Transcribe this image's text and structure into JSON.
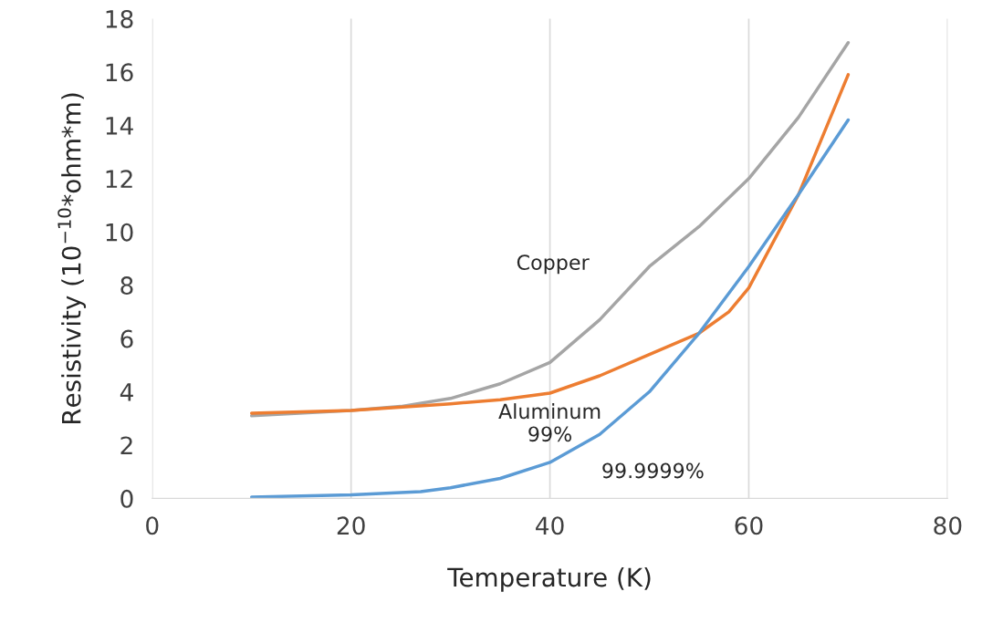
{
  "chart_data": {
    "type": "line",
    "xlabel": "Temperature (K)",
    "ylabel": "Resistivity (10$^{−10}$*ohm*m)",
    "xlim": [
      0,
      80
    ],
    "xticks": [
      0,
      20,
      40,
      60,
      80
    ],
    "ylim": [
      0,
      18
    ],
    "yticks": [
      0,
      2,
      4,
      6,
      8,
      10,
      12,
      14,
      16,
      18
    ],
    "grid": "x",
    "legend": false,
    "series": [
      {
        "name": "Copper",
        "color": "#a5a5a5",
        "x": [
          10,
          20,
          25,
          30,
          35,
          40,
          45,
          50,
          55,
          60,
          65,
          70
        ],
        "values": [
          3.1,
          3.3,
          3.45,
          3.75,
          4.3,
          5.1,
          6.7,
          8.7,
          10.2,
          12.0,
          14.3,
          17.1
        ]
      },
      {
        "name": "Aluminum\n99%",
        "color": "#ed7d31",
        "x": [
          10,
          20,
          30,
          35,
          40,
          45,
          50,
          55,
          58,
          60,
          65,
          70
        ],
        "values": [
          3.2,
          3.3,
          3.55,
          3.7,
          3.95,
          4.6,
          5.4,
          6.2,
          7.0,
          7.9,
          11.4,
          15.9
        ]
      },
      {
        "name": "99.9999%",
        "color": "#5b9bd5",
        "x": [
          10,
          20,
          27,
          30,
          35,
          40,
          45,
          50,
          55,
          60,
          65,
          70
        ],
        "values": [
          0.05,
          0.13,
          0.25,
          0.4,
          0.75,
          1.35,
          2.4,
          4.0,
          6.2,
          8.7,
          11.4,
          14.2
        ]
      }
    ]
  }
}
